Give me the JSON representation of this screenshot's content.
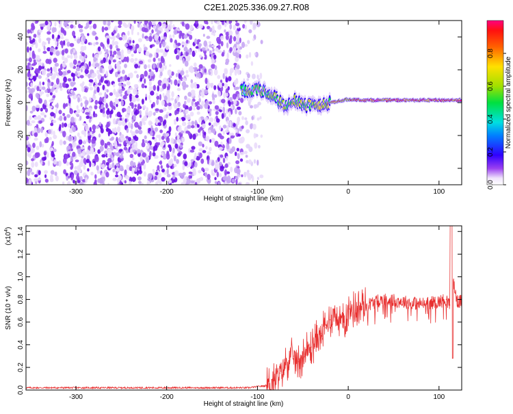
{
  "title": "C2E1.2025.336.09.27.R08",
  "chart_data": [
    {
      "type": "heatmap",
      "xlabel": "Height of straight line (km)",
      "ylabel": "Frequency (Hz)",
      "xlim": [
        -355,
        125
      ],
      "ylim": [
        -50,
        50
      ],
      "xticks": [
        -300,
        -200,
        -100,
        0,
        100
      ],
      "yticks": [
        -40,
        -20,
        0,
        20,
        40
      ],
      "grid": false,
      "colorbar": {
        "label": "Normalized spectral amplitude",
        "range": [
          0,
          1
        ],
        "ticks": [
          "0.0",
          "0.2",
          "0.4",
          "0.6",
          "0.8"
        ],
        "colormap": [
          "#ffffff",
          "#e0c8f8",
          "#8a3fe0",
          "#3d00e0",
          "#0030ff",
          "#00c8ff",
          "#00e080",
          "#7ddc00",
          "#ffe000",
          "#ff8000",
          "#ff2000",
          "#ff0060"
        ]
      },
      "noise_region": {
        "x": [
          -355,
          -95
        ],
        "amplitude_range": [
          0.0,
          0.15
        ]
      },
      "signal_track": [
        {
          "x": -118,
          "freq": 8,
          "amp": 0.45
        },
        {
          "x": -110,
          "freq": 7,
          "amp": 0.5
        },
        {
          "x": -100,
          "freq": 8,
          "amp": 0.55
        },
        {
          "x": -90,
          "freq": 6,
          "amp": 0.5
        },
        {
          "x": -80,
          "freq": 3,
          "amp": 0.5
        },
        {
          "x": -70,
          "freq": -2,
          "amp": 0.55
        },
        {
          "x": -60,
          "freq": 2,
          "amp": 0.5
        },
        {
          "x": -50,
          "freq": -1,
          "amp": 0.55
        },
        {
          "x": -40,
          "freq": -1,
          "amp": 0.55
        },
        {
          "x": -30,
          "freq": -2,
          "amp": 0.6
        },
        {
          "x": -20,
          "freq": 0,
          "amp": 0.65
        },
        {
          "x": -10,
          "freq": 1,
          "amp": 0.7
        },
        {
          "x": 0,
          "freq": 2,
          "amp": 0.75
        },
        {
          "x": 20,
          "freq": 1.5,
          "amp": 0.85
        },
        {
          "x": 40,
          "freq": 1.5,
          "amp": 0.85
        },
        {
          "x": 60,
          "freq": 1.5,
          "amp": 0.85
        },
        {
          "x": 80,
          "freq": 1.5,
          "amp": 0.85
        },
        {
          "x": 100,
          "freq": 1.5,
          "amp": 0.85
        },
        {
          "x": 125,
          "freq": 1.5,
          "amp": 0.85
        }
      ]
    },
    {
      "type": "line",
      "xlabel": "Height of straight line (km)",
      "ylabel": "SNR (10 * v/v)",
      "yscale_label": "(x10",
      "yscale_exp": "4",
      "yscale_close": ")",
      "xlim": [
        -355,
        125
      ],
      "ylim": [
        0,
        1.45
      ],
      "xticks": [
        -300,
        -200,
        -100,
        0,
        100
      ],
      "yticks": [
        "0.0",
        "0.2",
        "0.4",
        "0.6",
        "0.8",
        "1.0",
        "1.2",
        "1.4"
      ],
      "grid": false,
      "color": "#e83030",
      "x": [
        -355,
        -300,
        -250,
        -200,
        -150,
        -110,
        -100,
        -90,
        -80,
        -75,
        -70,
        -65,
        -60,
        -55,
        -50,
        -45,
        -40,
        -35,
        -30,
        -25,
        -20,
        -15,
        -10,
        -5,
        0,
        10,
        20,
        30,
        40,
        60,
        80,
        100,
        108,
        112,
        116,
        120,
        125
      ],
      "values": [
        0.02,
        0.02,
        0.02,
        0.02,
        0.02,
        0.02,
        0.03,
        0.04,
        0.08,
        0.15,
        0.22,
        0.28,
        0.3,
        0.25,
        0.3,
        0.35,
        0.38,
        0.45,
        0.5,
        0.55,
        0.62,
        0.68,
        0.62,
        0.6,
        0.7,
        0.72,
        0.75,
        0.78,
        0.8,
        0.78,
        0.76,
        0.78,
        0.8,
        0.75,
        0.95,
        0.78,
        0.78
      ]
    }
  ]
}
